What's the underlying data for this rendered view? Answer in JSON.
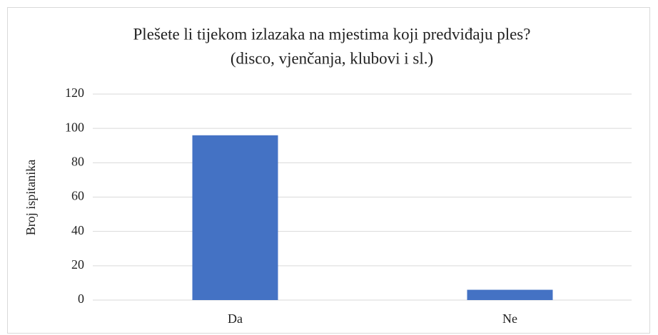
{
  "chart_data": {
    "type": "bar",
    "title": [
      "Plešete li tijekom izlazaka na mjestima koji predviđaju ples?",
      "(disco, vjenčanja, klubovi i sl.)"
    ],
    "y_label": "Broj ispitanika",
    "categories": [
      "Da",
      "Ne"
    ],
    "values": [
      96,
      6
    ],
    "color": "#4472c4",
    "ylim": [
      0,
      120
    ],
    "yticks": [
      0,
      20,
      40,
      60,
      80,
      100,
      120
    ],
    "grid": true
  }
}
